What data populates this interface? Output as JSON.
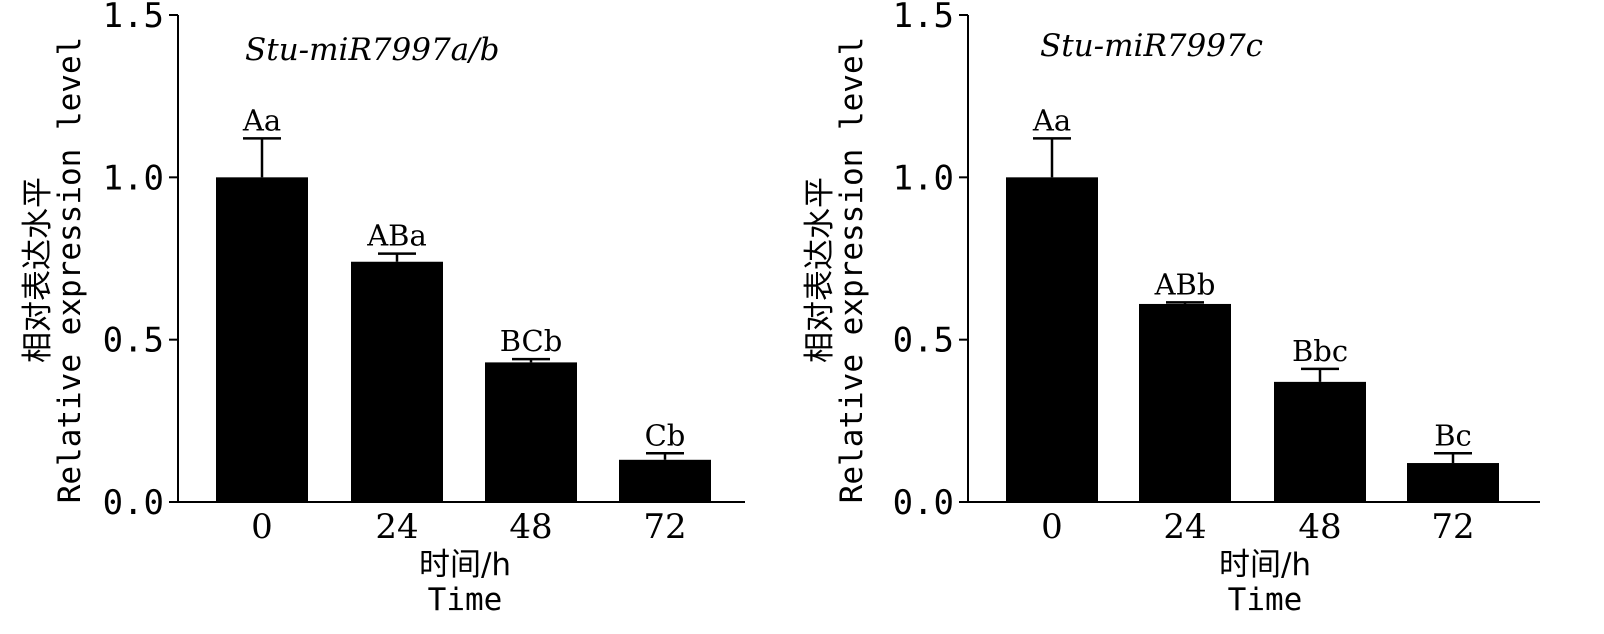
{
  "chart_data": [
    {
      "type": "bar",
      "title": "Stu-miR7997a/b",
      "xlabel_cn": "时间/h",
      "xlabel_en": "Time",
      "ylabel_cn": "相对表达水平",
      "ylabel_en": "Relative expression level",
      "categories": [
        "0",
        "24",
        "48",
        "72"
      ],
      "values": [
        1.0,
        0.74,
        0.43,
        0.13
      ],
      "errors": [
        0.12,
        0.025,
        0.01,
        0.02
      ],
      "significance": [
        "Aa",
        "ABa",
        "BCb",
        "Cb"
      ],
      "ylim": [
        0,
        1.5
      ],
      "yticks": [
        0.0,
        0.5,
        1.0,
        1.5
      ],
      "ytick_labels": [
        "0.0",
        "0.5",
        "1.0",
        "1.5"
      ],
      "bar_color": "#000000",
      "grid": false
    },
    {
      "type": "bar",
      "title": "Stu-miR7997c",
      "xlabel_cn": "时间/h",
      "xlabel_en": "Time",
      "ylabel_cn": "相对表达水平",
      "ylabel_en": "Relative expression level",
      "categories": [
        "0",
        "24",
        "48",
        "72"
      ],
      "values": [
        1.0,
        0.61,
        0.37,
        0.12
      ],
      "errors": [
        0.12,
        0.005,
        0.04,
        0.03
      ],
      "significance": [
        "Aa",
        "ABb",
        "Bbc",
        "Bc"
      ],
      "ylim": [
        0,
        1.5
      ],
      "yticks": [
        0.0,
        0.5,
        1.0,
        1.5
      ],
      "ytick_labels": [
        "0.0",
        "0.5",
        "1.0",
        "1.5"
      ],
      "bar_color": "#000000",
      "grid": false
    }
  ]
}
